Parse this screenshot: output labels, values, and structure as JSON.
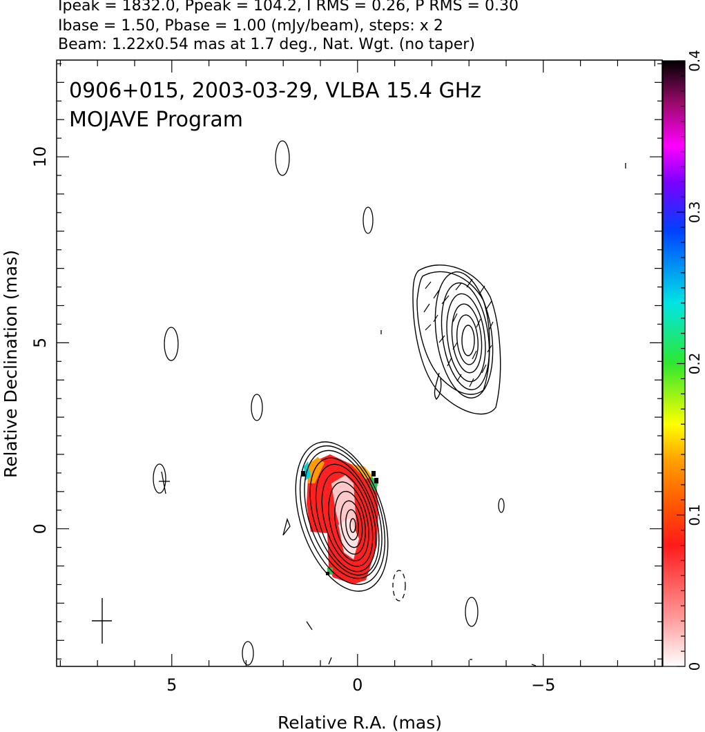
{
  "header": {
    "line1": "Ipeak = 1832.0, Ppeak = 104.2, I RMS = 0.26, P RMS = 0.30",
    "line2": "Ibase = 1.50, Pbase = 1.00 (mJy/beam), steps: x 2",
    "line3": "Beam: 1.22x0.54 mas at 1.7 deg., Nat. Wgt. (no taper)"
  },
  "chart_data": {
    "type": "heatmap",
    "title": "0906+015, 2003-03-29, VLBA 15.4 GHz",
    "subtitle": "MOJAVE Program",
    "xlabel": "Relative R.A. (mas)",
    "ylabel": "Relative Declination (mas)",
    "xlim": [
      8.1,
      -8.2
    ],
    "ylim": [
      -3.7,
      12.6
    ],
    "x_ticks": [
      5,
      0,
      -5
    ],
    "x_tick_labels": [
      "5",
      "0",
      "−5"
    ],
    "y_ticks": [
      0,
      5,
      10
    ],
    "y_tick_labels": [
      "0",
      "5",
      "10"
    ],
    "colorbar": {
      "range": [
        0,
        0.4
      ],
      "ticks": [
        0,
        0.1,
        0.2,
        0.3,
        0.4
      ],
      "tick_labels": [
        "0",
        "0.1",
        "0.2",
        "0.3",
        "0.4"
      ]
    },
    "components": [
      {
        "type": "core",
        "x": 0.0,
        "y": 0.0
      },
      {
        "type": "jet",
        "x": -3.0,
        "y": 5.4
      }
    ],
    "beam": {
      "major_mas": 1.22,
      "minor_mas": 0.54,
      "pa_deg": 1.7,
      "x": 6.7,
      "y": -2.5
    }
  }
}
